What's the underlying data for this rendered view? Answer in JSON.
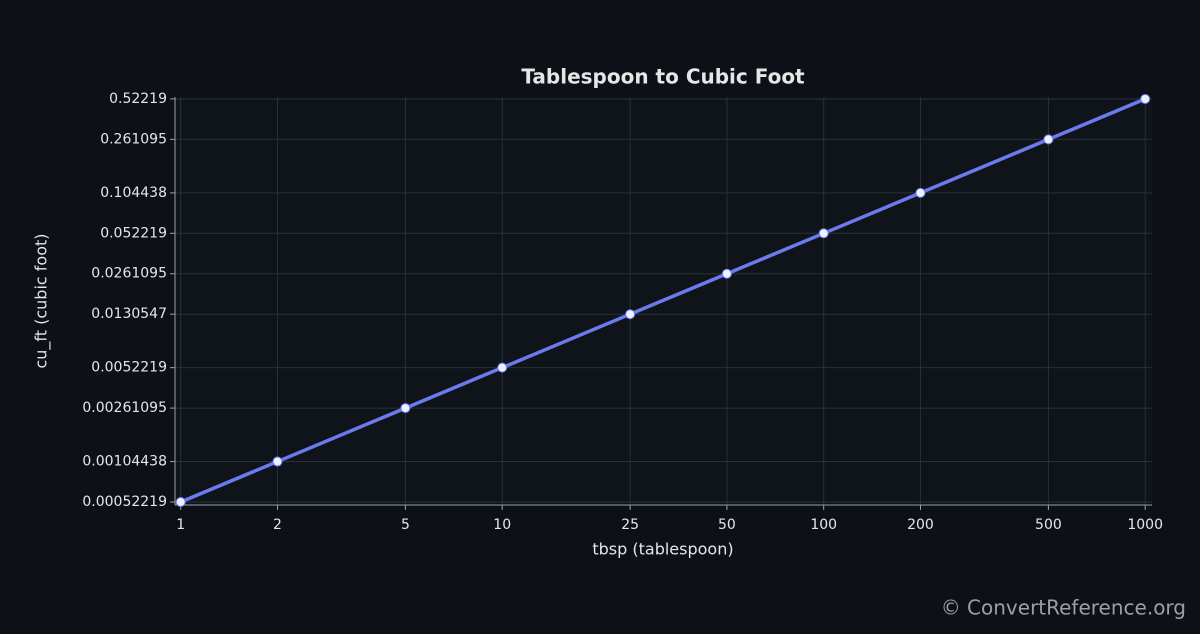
{
  "chart_data": {
    "type": "line",
    "title": "Tablespoon to Cubic Foot",
    "x_label": "tbsp (tablespoon)",
    "y_label": "cu_ft (cubic foot)",
    "x": [
      1,
      2,
      5,
      10,
      25,
      50,
      100,
      200,
      500,
      1000
    ],
    "values": [
      0.00052219,
      0.00104438,
      0.00261095,
      0.0052219,
      0.0130547,
      0.0261095,
      0.052219,
      0.104438,
      0.261095,
      0.52219
    ],
    "color": "#6b7bef",
    "x_scale": "log",
    "y_scale": "log",
    "xlim": [
      0.96,
      1050
    ],
    "ylim": [
      0.000496,
      0.54
    ],
    "xticks": [
      1,
      2,
      5,
      10,
      25,
      50,
      100,
      200,
      500,
      1000
    ],
    "yticks": [
      0.00052219,
      0.00104438,
      0.00261095,
      0.0052219,
      0.0130547,
      0.0261095,
      0.052219,
      0.104438,
      0.261095,
      0.52219
    ],
    "grid": true,
    "source": "© ConvertReference.org"
  }
}
